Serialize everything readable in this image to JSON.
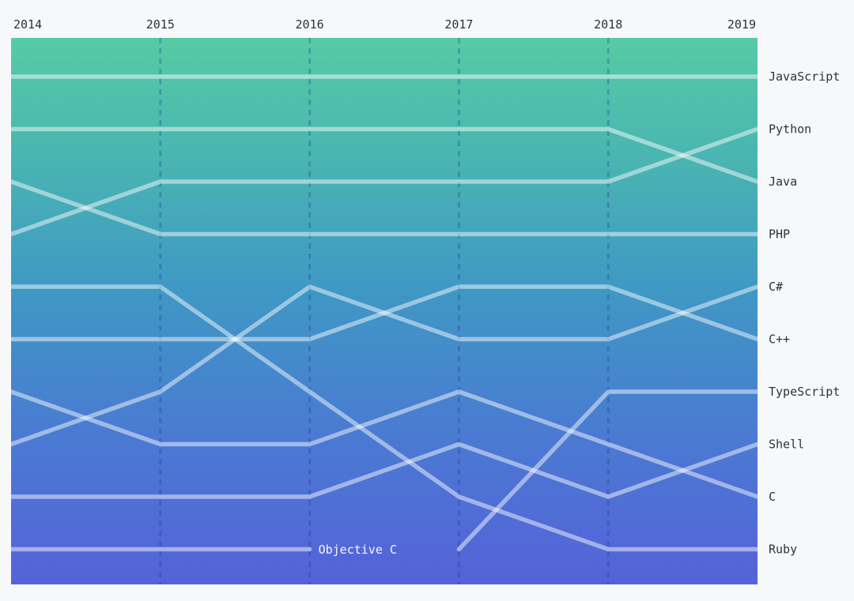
{
  "chart_data": {
    "type": "line",
    "subtype": "bump-rank-chart",
    "title": "",
    "x": [
      2014,
      2015,
      2016,
      2017,
      2018,
      2019
    ],
    "rank_range": [
      1,
      10
    ],
    "grid": "dashed-vertical-year-lines",
    "legend_position": "right-inline-labels",
    "series": [
      {
        "name": "JavaScript",
        "ranks": [
          1,
          1,
          1,
          1,
          1,
          1
        ]
      },
      {
        "name": "Python",
        "ranks": [
          4,
          3,
          3,
          3,
          3,
          2
        ]
      },
      {
        "name": "Java",
        "ranks": [
          2,
          2,
          2,
          2,
          2,
          3
        ]
      },
      {
        "name": "PHP",
        "ranks": [
          3,
          4,
          4,
          4,
          4,
          4
        ]
      },
      {
        "name": "C#",
        "ranks": [
          8,
          7,
          5,
          6,
          6,
          5
        ]
      },
      {
        "name": "C++",
        "ranks": [
          6,
          6,
          6,
          5,
          5,
          6
        ]
      },
      {
        "name": "TypeScript",
        "ranks": [
          null,
          null,
          null,
          10,
          7,
          7
        ]
      },
      {
        "name": "Shell",
        "ranks": [
          9,
          9,
          9,
          8,
          9,
          8
        ]
      },
      {
        "name": "C",
        "ranks": [
          7,
          8,
          8,
          7,
          8,
          9
        ]
      },
      {
        "name": "Ruby",
        "ranks": [
          5,
          5,
          7,
          9,
          10,
          10
        ]
      },
      {
        "name": "Objective C",
        "ranks": [
          10,
          10,
          10,
          null,
          null,
          null
        ],
        "inline_label": true
      }
    ],
    "colors": {
      "page_background": "#f6f8fa",
      "gradient_stops": [
        {
          "offset": 0,
          "color": "#56CBA5"
        },
        {
          "offset": 0.23,
          "color": "#49B4B2"
        },
        {
          "offset": 0.47,
          "color": "#3F97C5"
        },
        {
          "offset": 0.72,
          "color": "#4A7BD2"
        },
        {
          "offset": 1,
          "color": "#5562D9"
        }
      ],
      "series_line": "rgba(255,255,255,0.48)",
      "year_gridline": "rgba(23,58,138,0.28)",
      "axis_text": "#2d333a",
      "inline_label_text": "rgba(255,255,255,0.95)"
    }
  }
}
